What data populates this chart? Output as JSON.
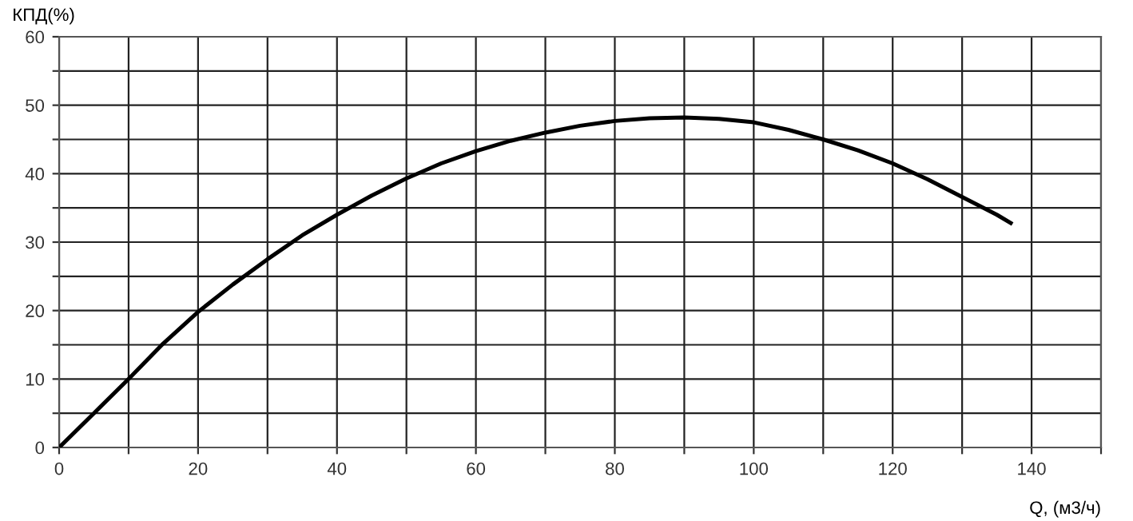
{
  "chart_data": {
    "type": "line",
    "xlabel": "Q, (м3/ч)",
    "ylabel": "КПД(%)",
    "x": [
      0,
      5,
      10,
      15,
      20,
      25,
      30,
      35,
      40,
      45,
      50,
      55,
      60,
      65,
      70,
      75,
      80,
      85,
      90,
      95,
      100,
      105,
      110,
      115,
      120,
      125,
      130,
      135,
      137
    ],
    "series": [
      {
        "color": "#000000",
        "values": [
          0,
          5,
          10,
          15.2,
          19.8,
          23.8,
          27.5,
          31,
          34,
          36.8,
          39.3,
          41.5,
          43.3,
          44.8,
          46,
          47,
          47.7,
          48.1,
          48.2,
          48,
          47.5,
          46.4,
          45,
          43.4,
          41.5,
          39.2,
          36.6,
          34,
          32.8
        ]
      }
    ],
    "xlim": [
      0,
      150
    ],
    "ylim": [
      0,
      60
    ],
    "xticks": [
      0,
      {
        "value": 10,
        "label": null
      },
      20,
      {
        "value": 30,
        "label": null
      },
      40,
      {
        "value": 50,
        "label": null
      },
      60,
      {
        "value": 70,
        "label": null
      },
      80,
      {
        "value": 90,
        "label": null
      },
      100,
      {
        "value": 110,
        "label": null
      },
      120,
      {
        "value": 130,
        "label": null
      },
      140,
      {
        "value": 150,
        "label": null
      }
    ],
    "yticks": [
      0,
      {
        "value": 5,
        "label": null
      },
      10,
      {
        "value": 15,
        "label": null
      },
      20,
      {
        "value": 25,
        "label": null
      },
      30,
      {
        "value": 35,
        "label": null
      },
      40,
      {
        "value": 45,
        "label": null
      },
      50,
      {
        "value": 55,
        "label": null
      },
      60
    ],
    "grid": true,
    "marker": "none",
    "line_style": "solid"
  }
}
